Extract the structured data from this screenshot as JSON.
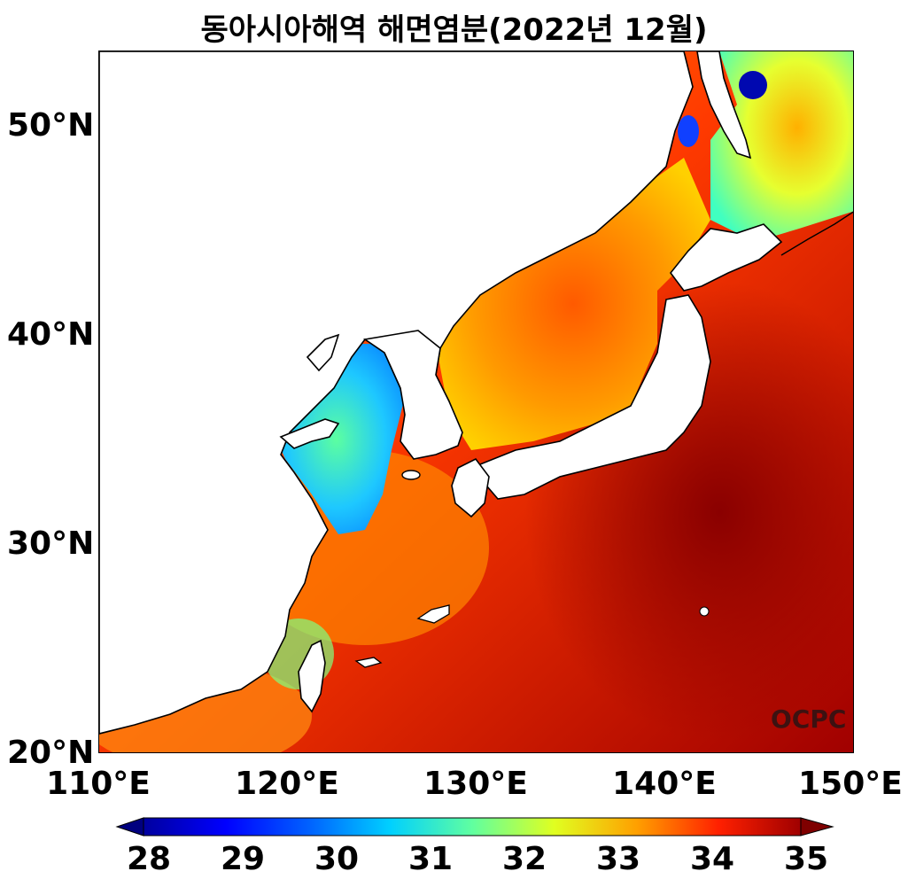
{
  "title": "동아시아해역 해면염분(2022년 12월)",
  "credit": "OCPC",
  "map": {
    "lon_range": [
      110,
      150
    ],
    "lat_range": [
      20,
      53.5
    ],
    "lat_ticks": [
      "20°N",
      "30°N",
      "40°N",
      "50°N"
    ],
    "lon_ticks": [
      "110°E",
      "120°E",
      "130°E",
      "140°E",
      "150°E"
    ],
    "variable": "sea surface salinity",
    "colormap": "jet",
    "land_color": "#ffffff",
    "coastline_color": "#000000"
  },
  "colorbar": {
    "min": 28,
    "max": 35,
    "ticks": [
      "28",
      "29",
      "30",
      "31",
      "32",
      "33",
      "34",
      "35"
    ],
    "extend": "both",
    "colors": [
      "#00007f",
      "#0000ff",
      "#007fff",
      "#00ffff",
      "#7fff7f",
      "#ffff00",
      "#ff7f00",
      "#ff0000",
      "#7f0000"
    ]
  }
}
